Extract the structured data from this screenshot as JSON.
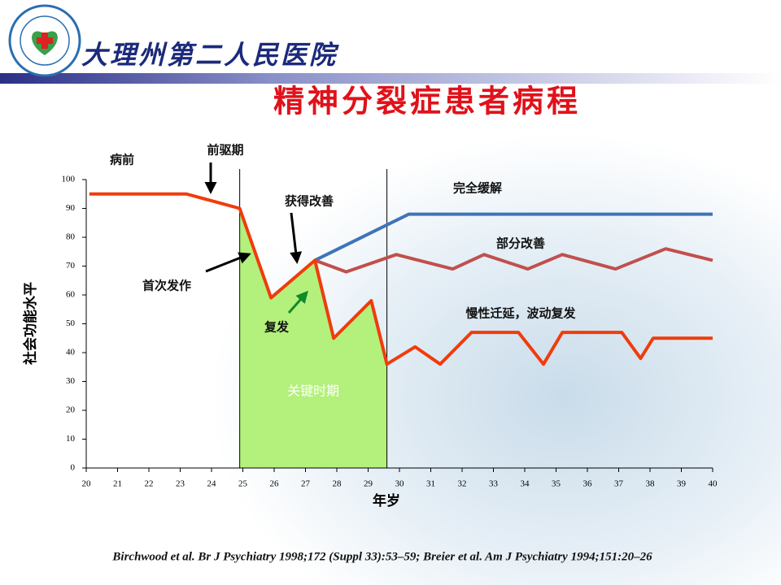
{
  "hospital": "大理州第二人民医院",
  "citation": "Birchwood et al. Br J Psychiatry 1998;172 (Suppl 33):53–59; Breier et al. Am J Psychiatry 1994;151:20–26",
  "chart_data": {
    "type": "line",
    "title": "精神分裂症患者病程",
    "x_label": "年岁",
    "y_label": "社会功能水平",
    "xlim": [
      20,
      40
    ],
    "xticks": [
      20,
      21,
      22,
      23,
      24,
      25,
      26,
      27,
      28,
      29,
      30,
      31,
      32,
      33,
      34,
      35,
      36,
      37,
      38,
      39,
      40
    ],
    "ylim": [
      0,
      100
    ],
    "yticks": [
      0,
      10,
      20,
      30,
      40,
      50,
      60,
      70,
      80,
      90,
      100
    ],
    "critical_period": {
      "label": "关键时期",
      "x": [
        24.9,
        29.6
      ],
      "color": "#b4f07c"
    },
    "annotations": [
      "病前",
      "前驱期",
      "获得改善",
      "首次发作",
      "复发",
      "完全缓解",
      "部分改善",
      "慢性迁延，波动复发"
    ],
    "series": [
      {
        "color": "#3f74b6",
        "x": [
          27.3,
          30.3,
          40
        ],
        "values": [
          72,
          88,
          88
        ]
      },
      {
        "color": "#c0504d",
        "x": [
          27.3,
          28.3,
          29.9,
          31.7,
          32.7,
          34.1,
          35.2,
          36.9,
          38.5,
          40
        ],
        "values": [
          72,
          68,
          74,
          69,
          74,
          69,
          74,
          69,
          76,
          72
        ]
      },
      {
        "color": "#f03c0c",
        "x": [
          20.1,
          23.2,
          24.9,
          25.9,
          27.3,
          27.9,
          29.1,
          29.6,
          30.5,
          31.3,
          32.3,
          33.8,
          34.6,
          35.2,
          37.1,
          37.7,
          38.1,
          40
        ],
        "values": [
          95,
          95,
          90,
          59,
          72,
          45,
          58,
          36,
          42,
          36,
          47,
          47,
          36,
          47,
          47,
          38,
          45,
          45
        ]
      }
    ]
  }
}
